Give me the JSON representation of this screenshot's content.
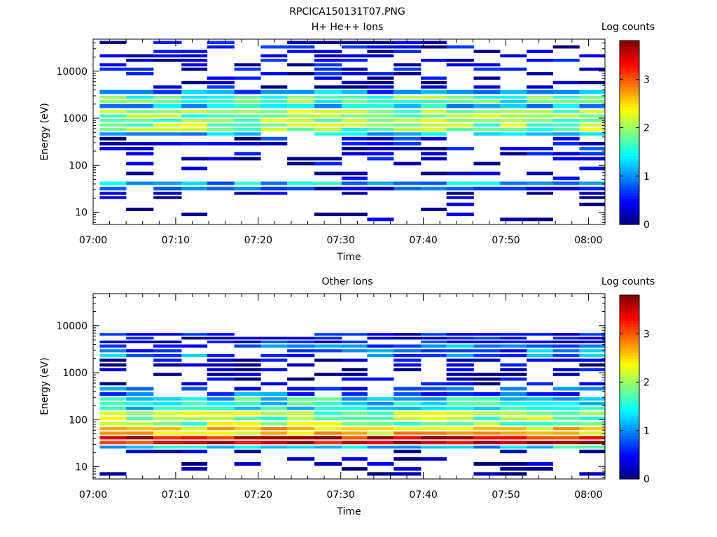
{
  "figure_title": "RPCICA150131T07.PNG",
  "chart_data": [
    {
      "type": "heatmap",
      "title": "H+ He++ Ions",
      "xlabel": "Time",
      "ylabel": "Energy (eV)",
      "colorbar_label": "Log counts",
      "xticks": [
        "07:00",
        "07:10",
        "07:20",
        "07:30",
        "07:40",
        "07:50",
        "08:00"
      ],
      "yticks": [
        "10",
        "100",
        "1000",
        "10000"
      ],
      "cbar_ticks": [
        "0",
        "1",
        "2",
        "3"
      ],
      "y_scale": "log",
      "ylim": [
        5.5,
        48000
      ],
      "xlim_minutes": [
        0,
        62
      ],
      "zlim": [
        0,
        3.8
      ],
      "colormap": "jet",
      "time_bins_start_min": [
        0.8,
        4,
        7.3,
        10.7,
        13.8,
        17.1,
        20.3,
        23.5,
        26.8,
        30.1,
        33.2,
        36.4,
        39.7,
        42.8,
        46.1,
        49.3,
        52.5,
        55.7,
        58.9
      ],
      "time_bins_end_min": [
        4,
        7.3,
        10.7,
        13.8,
        17.1,
        20.3,
        23.5,
        26.8,
        30.1,
        33.2,
        36.4,
        39.7,
        42.8,
        46.1,
        49.3,
        52.5,
        55.7,
        58.9,
        62
      ],
      "bands": [
        {
          "e_lo": 4000,
          "e_hi": 44000,
          "level": 0.3,
          "fill": 0.45
        },
        {
          "e_lo": 3000,
          "e_hi": 4000,
          "level": 1.0,
          "fill": 0.9
        },
        {
          "e_lo": 2000,
          "e_hi": 3000,
          "level": 1.7,
          "fill": 1.0
        },
        {
          "e_lo": 1500,
          "e_hi": 2000,
          "level": 1.3,
          "fill": 1.0
        },
        {
          "e_lo": 500,
          "e_hi": 1500,
          "level": 1.9,
          "fill": 1.0
        },
        {
          "e_lo": 400,
          "e_hi": 500,
          "level": 1.3,
          "fill": 0.9
        },
        {
          "e_lo": 150,
          "e_hi": 400,
          "level": 0.4,
          "fill": 0.55
        },
        {
          "e_lo": 45,
          "e_hi": 150,
          "level": 0.2,
          "fill": 0.35
        },
        {
          "e_lo": 35,
          "e_hi": 45,
          "level": 1.2,
          "fill": 1.0
        },
        {
          "e_lo": 27,
          "e_hi": 35,
          "level": 0.6,
          "fill": 0.9
        },
        {
          "e_lo": 18,
          "e_hi": 27,
          "level": 0.1,
          "fill": 0.2
        },
        {
          "e_lo": 6,
          "e_hi": 16,
          "level": 0.05,
          "fill": 0.12
        }
      ]
    },
    {
      "type": "heatmap",
      "title": "Other Ions",
      "xlabel": "Time",
      "ylabel": "Energy (eV)",
      "colorbar_label": "Log counts",
      "xticks": [
        "07:00",
        "07:10",
        "07:20",
        "07:30",
        "07:40",
        "07:50",
        "08:00"
      ],
      "yticks": [
        "10",
        "100",
        "1000",
        "10000"
      ],
      "cbar_ticks": [
        "0",
        "1",
        "2",
        "3"
      ],
      "y_scale": "log",
      "ylim": [
        5.5,
        48000
      ],
      "xlim_minutes": [
        0,
        62
      ],
      "zlim": [
        0,
        3.8
      ],
      "colormap": "jet",
      "time_bins_start_min": [
        0.8,
        4,
        7.3,
        10.7,
        13.8,
        17.1,
        20.3,
        23.5,
        26.8,
        30.1,
        33.2,
        36.4,
        39.7,
        42.8,
        46.1,
        49.3,
        52.5,
        55.7,
        58.9
      ],
      "time_bins_end_min": [
        4,
        7.3,
        10.7,
        13.8,
        17.1,
        20.3,
        23.5,
        26.8,
        30.1,
        33.2,
        36.4,
        39.7,
        42.8,
        46.1,
        49.3,
        52.5,
        55.7,
        58.9,
        62
      ],
      "bands": [
        {
          "e_lo": 27000,
          "e_hi": 31000,
          "level": 0.1,
          "fill": 0.05
        },
        {
          "e_lo": 4000,
          "e_hi": 7000,
          "level": 0.4,
          "fill": 0.9
        },
        {
          "e_lo": 2000,
          "e_hi": 4000,
          "level": 0.9,
          "fill": 0.8
        },
        {
          "e_lo": 500,
          "e_hi": 2000,
          "level": 0.2,
          "fill": 0.4
        },
        {
          "e_lo": 300,
          "e_hi": 500,
          "level": 0.8,
          "fill": 0.8
        },
        {
          "e_lo": 150,
          "e_hi": 300,
          "level": 1.4,
          "fill": 1.0
        },
        {
          "e_lo": 70,
          "e_hi": 150,
          "level": 2.0,
          "fill": 1.0
        },
        {
          "e_lo": 45,
          "e_hi": 70,
          "level": 2.5,
          "fill": 1.0
        },
        {
          "e_lo": 28,
          "e_hi": 45,
          "level": 3.4,
          "fill": 1.0
        },
        {
          "e_lo": 23,
          "e_hi": 28,
          "level": 1.3,
          "fill": 1.0
        },
        {
          "e_lo": 18,
          "e_hi": 23,
          "level": 0.1,
          "fill": 0.4
        },
        {
          "e_lo": 6,
          "e_hi": 16,
          "level": 0.05,
          "fill": 0.3
        }
      ]
    }
  ]
}
